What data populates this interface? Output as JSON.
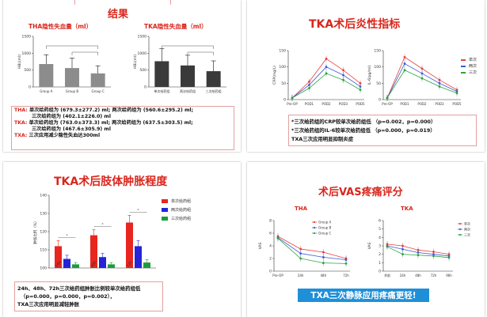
{
  "slide1": {
    "title": "结果",
    "chart_left_title": "THA隐性失血量（ml）",
    "chart_right_title": "TKA隐性失血量（ml）",
    "y_axis_label": "HBL(ml)",
    "notes": [
      {
        "label": "THA:",
        "text": "单次给药组为 (679.3±277.2) ml; 两次给药组为 (560.6±295.2) ml;"
      },
      {
        "label": "",
        "text": "三次给药组为 (402.1±226.0) ml"
      },
      {
        "label": "TKA:",
        "text": "单次给药组为 (763.0±373.3) ml; 两次给药组为 (637.5±303.5) ml;"
      },
      {
        "label": "",
        "text": "三次给药组为 (467.6±305.9) ml"
      },
      {
        "label": "TXA:",
        "text": "三次应用减少隐性失血达300ml"
      }
    ]
  },
  "slide2": {
    "title": "TKA术后炎性指标",
    "legend": [
      "单次",
      "两次",
      "三次"
    ],
    "y_left_label": "CRP(mg/L)",
    "y_right_label": "IL-6(pg/ml)",
    "notes": [
      "*三次给药组的CRP较单次给药组低 （p=0.002，p=0.000）",
      "*三次给药组的IL-6较单次给药组低 （p=0.000，p=0.019）",
      "TXA三次应用明显抑制炎症"
    ]
  },
  "slide3": {
    "title": "TKA术后肢体肿胀程度",
    "y_label": "肿胀比例（%）",
    "legend": [
      "单次给药组",
      "两次给药组",
      "三次给药组"
    ],
    "notes": [
      "24h、48h、72h三次给药组肿胀比例较单次给药组低",
      "（p=0.000，p=0.000，p=0.002），",
      "TXA三次应用明显减轻肿胀"
    ]
  },
  "slide4": {
    "title": "术后VAS疼痛评分",
    "chart_left_title": "THA",
    "chart_right_title": "TKA",
    "left_legend": [
      "Group A",
      "Group B",
      "Group C"
    ],
    "right_legend": [
      "单次",
      "两次",
      "三次"
    ],
    "y_label": "VAS",
    "banner": "TXA三次静脉应用疼痛更轻!"
  },
  "chart_data": [
    {
      "type": "bar",
      "name_key": "THA",
      "categories": [
        "Group A",
        "Group B",
        "Group C"
      ],
      "values": [
        679.3,
        560.6,
        402.1
      ],
      "errors": [
        277.2,
        295.2,
        226.0
      ],
      "ylim": [
        0,
        1500
      ],
      "yticks": [
        0,
        500,
        1000,
        1500
      ],
      "color": "#8c8c8c"
    },
    {
      "type": "bar",
      "name_key": "TKA",
      "categories": [
        "单次给药组",
        "两次给药组",
        "三次给药组"
      ],
      "values": [
        763.0,
        637.5,
        467.6
      ],
      "errors": [
        373.3,
        303.5,
        305.9
      ],
      "ylim": [
        0,
        1500
      ],
      "yticks": [
        0,
        500,
        1000,
        1500
      ],
      "color": "#3a3a3a"
    },
    {
      "type": "line",
      "name_key": "CRP",
      "x": [
        "Pre-OP",
        "POD1",
        "POD2",
        "POD3",
        "POD5"
      ],
      "ylim": [
        0,
        150
      ],
      "yticks": [
        0,
        50,
        100,
        150
      ],
      "series": [
        {
          "name": "单次",
          "values": [
            5,
            55,
            125,
            90,
            50
          ],
          "color": "#e8413b"
        },
        {
          "name": "两次",
          "values": [
            5,
            45,
            100,
            75,
            40
          ],
          "color": "#3b5bd9"
        },
        {
          "name": "三次",
          "values": [
            5,
            35,
            80,
            60,
            30
          ],
          "color": "#2ea043"
        }
      ]
    },
    {
      "type": "line",
      "name_key": "IL6",
      "x": [
        "Pre-OP",
        "POD1",
        "POD2",
        "POD3",
        "POD5"
      ],
      "ylim": [
        0,
        150
      ],
      "yticks": [
        0,
        50,
        100,
        150
      ],
      "series": [
        {
          "name": "单次",
          "values": [
            5,
            130,
            95,
            60,
            30
          ],
          "color": "#e8413b"
        },
        {
          "name": "两次",
          "values": [
            5,
            110,
            80,
            50,
            25
          ],
          "color": "#3b5bd9"
        },
        {
          "name": "三次",
          "values": [
            5,
            90,
            65,
            40,
            20
          ],
          "color": "#2ea043"
        }
      ]
    },
    {
      "type": "bar",
      "name_key": "swelling",
      "categories": [
        "24h",
        "48h",
        "72h"
      ],
      "ylim": [
        100,
        140
      ],
      "yticks": [
        100,
        110,
        120,
        130,
        140
      ],
      "series": [
        {
          "name": "单次给药组",
          "values": [
            112,
            118,
            125
          ],
          "errors": [
            3,
            3,
            4
          ],
          "color": "#e8251f"
        },
        {
          "name": "两次给药组",
          "values": [
            105,
            106,
            112
          ],
          "errors": [
            2,
            2,
            3
          ],
          "color": "#2424d8"
        },
        {
          "name": "三次给药组",
          "values": [
            102,
            102,
            103
          ],
          "errors": [
            1,
            1,
            1.5
          ],
          "color": "#1e9b3b"
        }
      ]
    },
    {
      "type": "line",
      "name_key": "VAS_THA",
      "x": [
        "Pre-OP",
        "24h",
        "48h",
        "72h"
      ],
      "ylim": [
        0,
        8
      ],
      "yticks": [
        0,
        2,
        4,
        6,
        8
      ],
      "series": [
        {
          "name": "Group A",
          "values": [
            5.5,
            3.5,
            3.0,
            2.0
          ],
          "color": "#e8413b"
        },
        {
          "name": "Group B",
          "values": [
            5.3,
            2.8,
            2.2,
            1.8
          ],
          "color": "#3b5bd9"
        },
        {
          "name": "Group C",
          "values": [
            5.2,
            2.0,
            1.3,
            1.2
          ],
          "color": "#2ea043"
        }
      ]
    },
    {
      "type": "line",
      "name_key": "VAS_TKA",
      "x": [
        "术前",
        "24h",
        "48h",
        "72h",
        "96h"
      ],
      "ylim": [
        0,
        6
      ],
      "yticks": [
        0,
        1,
        2,
        3,
        4,
        5,
        6
      ],
      "series": [
        {
          "name": "单次",
          "values": [
            3.2,
            3.0,
            2.5,
            2.3,
            2.0
          ],
          "color": "#e8413b"
        },
        {
          "name": "两次",
          "values": [
            3.0,
            2.6,
            2.2,
            2.0,
            1.8
          ],
          "color": "#3b5bd9"
        },
        {
          "name": "三次",
          "values": [
            2.9,
            2.0,
            1.9,
            1.8,
            1.6
          ],
          "color": "#2ea043"
        }
      ]
    }
  ]
}
